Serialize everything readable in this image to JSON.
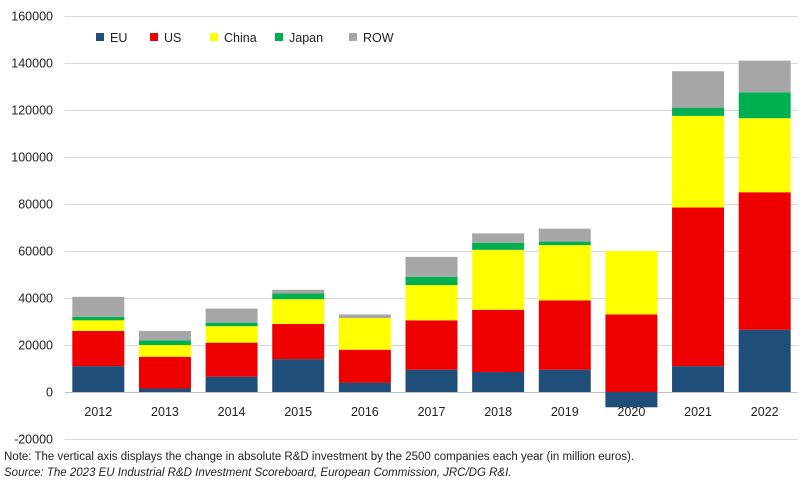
{
  "chart_data": {
    "type": "bar",
    "stacked": true,
    "title": "",
    "xlabel": "",
    "ylabel": "",
    "ylim": [
      -20000,
      160000
    ],
    "yticks": [
      -20000,
      0,
      20000,
      40000,
      60000,
      80000,
      100000,
      120000,
      140000,
      160000
    ],
    "ytick_labels": [
      "-20000",
      "0",
      "20000",
      "40000",
      "60000",
      "80000",
      "100000",
      "120000",
      "140000",
      "160000"
    ],
    "grid": true,
    "legend_position": "top-left",
    "categories": [
      "2012",
      "2013",
      "2014",
      "2015",
      "2016",
      "2017",
      "2018",
      "2019",
      "2020",
      "2021",
      "2022"
    ],
    "series": [
      {
        "name": "EU",
        "color": "#1f4e79",
        "values": [
          11000,
          1500,
          6500,
          14000,
          4000,
          9500,
          8500,
          9500,
          -6500,
          11000,
          26500
        ]
      },
      {
        "name": "US",
        "color": "#ee0000",
        "values": [
          15000,
          13500,
          14500,
          15000,
          14000,
          21000,
          26500,
          29500,
          33000,
          67500,
          58500
        ]
      },
      {
        "name": "China",
        "color": "#ffff00",
        "values": [
          4500,
          5000,
          7000,
          10500,
          13500,
          15000,
          25500,
          23500,
          27000,
          39000,
          31500
        ]
      },
      {
        "name": "Japan",
        "color": "#00b050",
        "values": [
          1500,
          2000,
          1500,
          2500,
          0,
          3500,
          3000,
          1500,
          0,
          3500,
          11000
        ]
      },
      {
        "name": "ROW",
        "color": "#a6a6a6",
        "values": [
          8500,
          4000,
          6000,
          1500,
          1500,
          8500,
          4000,
          5500,
          0,
          15500,
          13500
        ]
      }
    ]
  },
  "notes": {
    "line1": "Note: The vertical axis displays the change in absolute R&D investment by the 2500 companies each year (in million euros).",
    "line2": "Source: The 2023 EU Industrial R&D Investment Scoreboard, European Commission, JRC/DG R&I."
  }
}
